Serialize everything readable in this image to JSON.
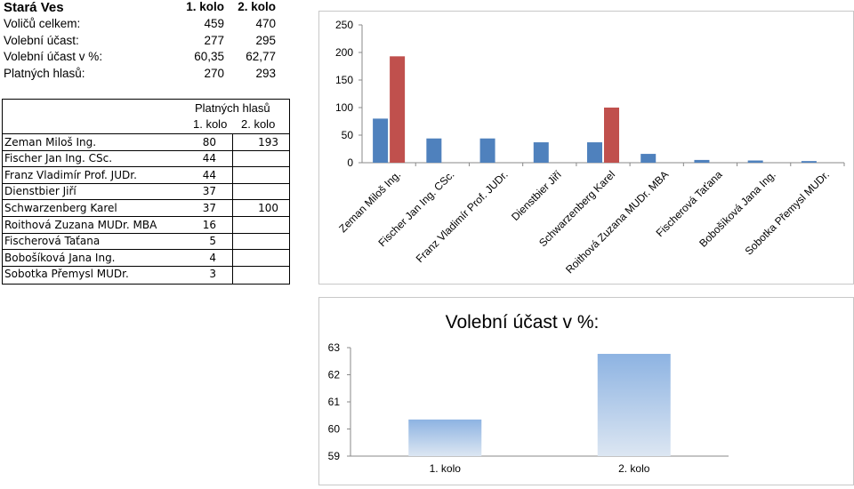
{
  "summary": {
    "title": "Stará Ves",
    "col1": "1. kolo",
    "col2": "2. kolo",
    "rows": [
      {
        "label": "Voličů celkem:",
        "v1": "459",
        "v2": "470"
      },
      {
        "label": "Volební účast:",
        "v1": "277",
        "v2": "295"
      },
      {
        "label": "Volební účast v %:",
        "v1": "60,35",
        "v2": "62,77"
      },
      {
        "label": "Platných hlasů:",
        "v1": "270",
        "v2": "293"
      }
    ]
  },
  "candidates": {
    "header": "Platných hlasů",
    "col1": "1. kolo",
    "col2": "2. kolo",
    "rows": [
      {
        "name": "Zeman Miloš Ing.",
        "v1": "80",
        "v2": "193"
      },
      {
        "name": "Fischer Jan Ing. CSc.",
        "v1": "44",
        "v2": ""
      },
      {
        "name": "Franz Vladimír Prof. JUDr.",
        "v1": "44",
        "v2": ""
      },
      {
        "name": "Dienstbier Jiří",
        "v1": "37",
        "v2": ""
      },
      {
        "name": "Schwarzenberg Karel",
        "v1": "37",
        "v2": "100"
      },
      {
        "name": "Roithová Zuzana MUDr. MBA",
        "v1": "16",
        "v2": ""
      },
      {
        "name": "Fischerová Taťana",
        "v1": "5",
        "v2": ""
      },
      {
        "name": "Bobošíková Jana Ing.",
        "v1": "4",
        "v2": ""
      },
      {
        "name": "Sobotka Přemysl MUDr.",
        "v1": "3",
        "v2": ""
      }
    ]
  },
  "chart_data": [
    {
      "type": "bar",
      "title": "",
      "categories": [
        "Zeman Miloš Ing.",
        "Fischer Jan Ing. CSc.",
        "Franz Vladimír Prof. JUDr.",
        "Dienstbier Jiří",
        "Schwarzenberg Karel",
        "Roithová Zuzana MUDr. MBA",
        "Fischerová Taťana",
        "Bobošíková Jana Ing.",
        "Sobotka Přemysl MUDr."
      ],
      "series": [
        {
          "values": [
            80,
            44,
            44,
            37,
            37,
            16,
            5,
            4,
            3
          ],
          "color": "#4f81bd"
        },
        {
          "values": [
            193,
            null,
            null,
            null,
            100,
            null,
            null,
            null,
            null
          ],
          "color": "#c0504d"
        }
      ],
      "yticks": [
        0,
        50,
        100,
        150,
        200,
        250
      ],
      "ylim": [
        0,
        250
      ],
      "grid": false,
      "legend": "none"
    },
    {
      "type": "bar",
      "title": "Volební účast v %:",
      "categories": [
        "1. kolo",
        "2. kolo"
      ],
      "values": [
        60.35,
        62.77
      ],
      "yticks": [
        59,
        60,
        61,
        62,
        63
      ],
      "ylim": [
        59,
        63
      ],
      "color_top": "#8db3e2",
      "color_bottom": "#dce6f2",
      "grid": false,
      "legend": "none"
    }
  ]
}
